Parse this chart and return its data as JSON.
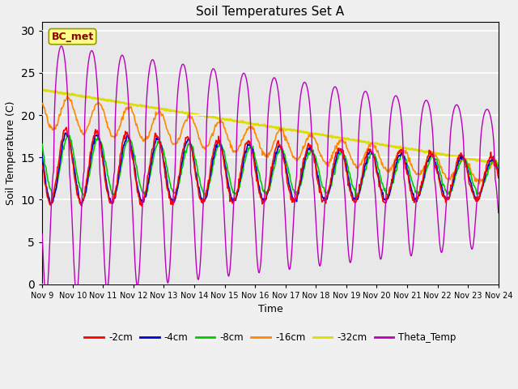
{
  "title": "Soil Temperatures Set A",
  "xlabel": "Time",
  "ylabel": "Soil Temperature (C)",
  "ylim": [
    0,
    31
  ],
  "yticks": [
    0,
    5,
    10,
    15,
    20,
    25,
    30
  ],
  "annotation_text": "BC_met",
  "annotation_color": "#8B0000",
  "annotation_bg": "#FFFF88",
  "annotation_edge": "#999900",
  "line_colors": {
    "-2cm": "#FF0000",
    "-4cm": "#0000CC",
    "-8cm": "#00CC00",
    "-16cm": "#FF8800",
    "-32cm": "#DDDD00",
    "Theta_Temp": "#BB00BB"
  },
  "background_color": "#E8E8E8",
  "fig_facecolor": "#F0F0F0"
}
